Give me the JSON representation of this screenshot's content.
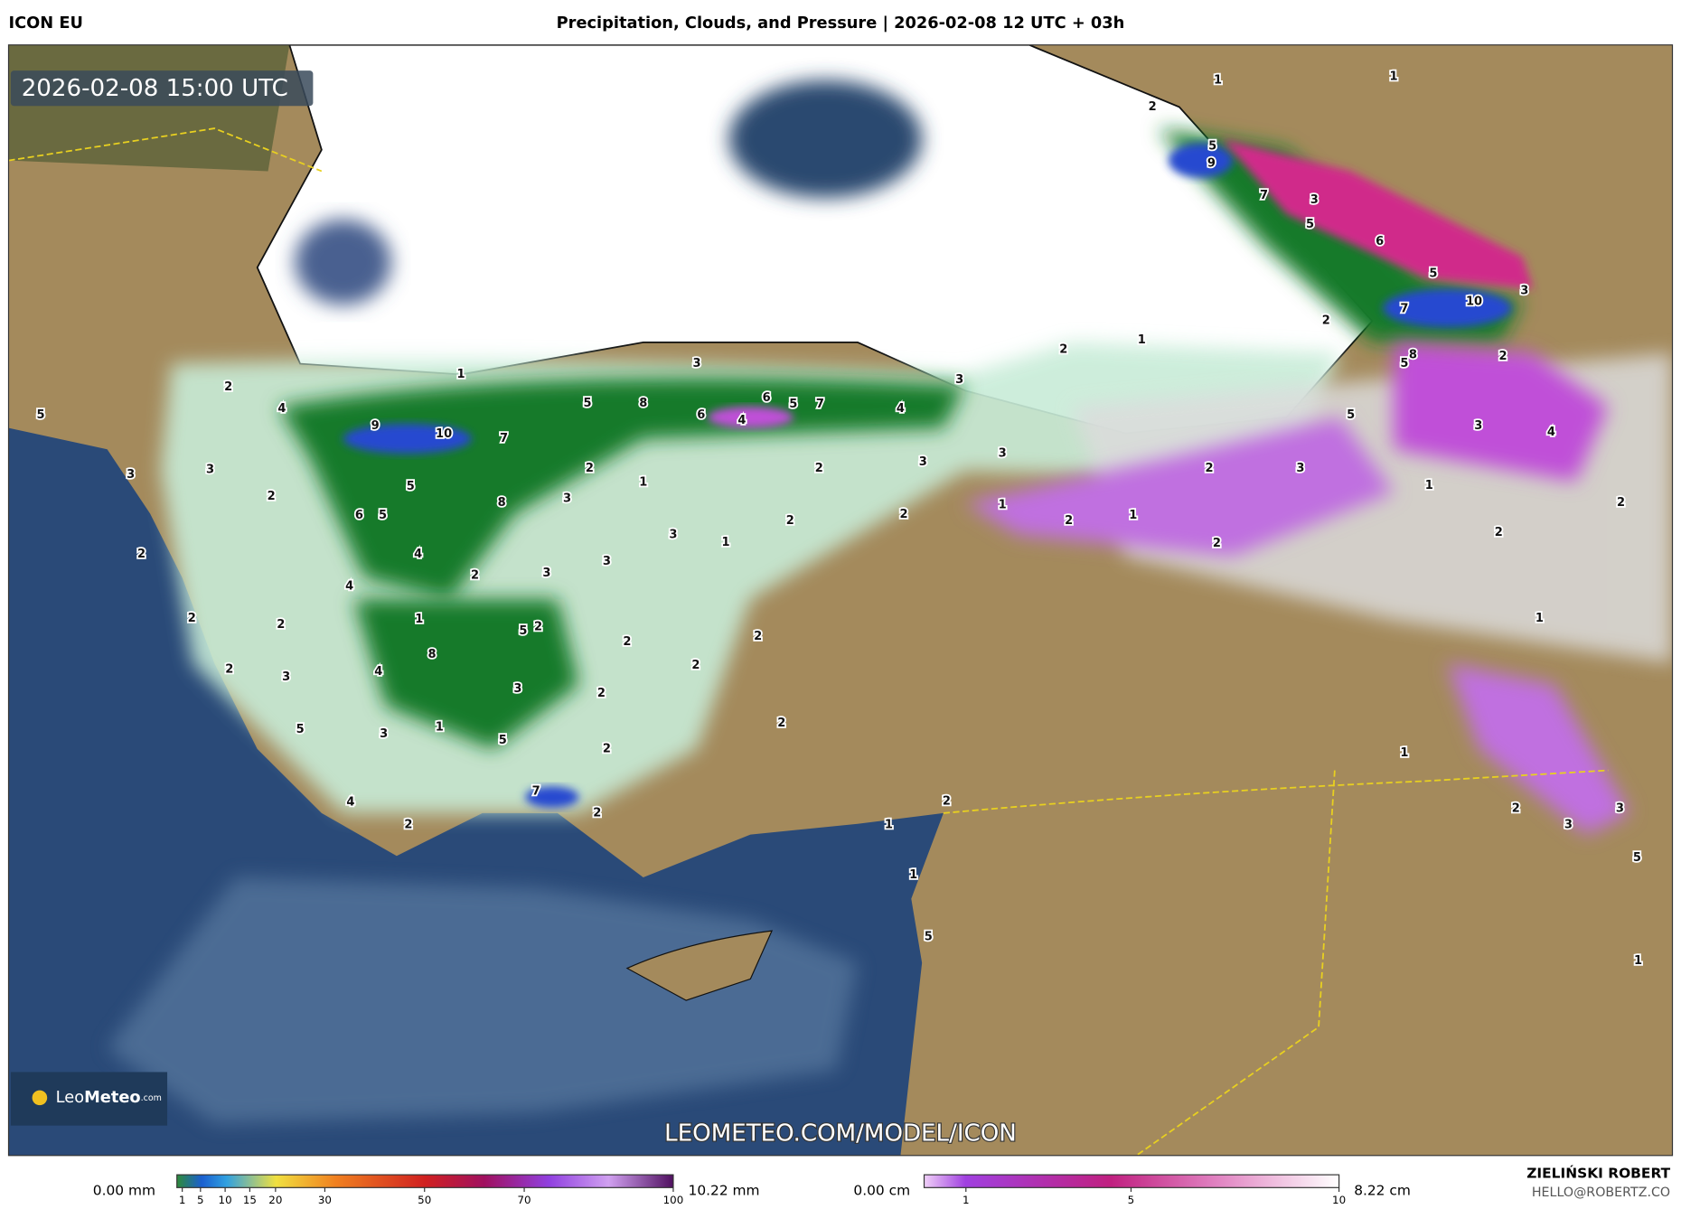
{
  "header": {
    "model": "ICON EU",
    "title": "Precipitation, Clouds, and Pressure | 2026-02-08 12 UTC + 03h"
  },
  "map": {
    "timestamp": "2026-02-08 15:00 UTC",
    "logo": {
      "leo": "Leo",
      "meteo": "Meteo",
      "com": ".com"
    },
    "watermark": "LEOMETEO.COM/MODEL/ICON",
    "labels": [
      1,
      2,
      4,
      5,
      9,
      10,
      7,
      5,
      8,
      3,
      6,
      5,
      7,
      4,
      6,
      4,
      3,
      2,
      1,
      2,
      1,
      1,
      9,
      5,
      7,
      3,
      5,
      6,
      5,
      10,
      7,
      3,
      2,
      8,
      5,
      2,
      5,
      3,
      4,
      3,
      2,
      2,
      1,
      1,
      2,
      1,
      2,
      1,
      2,
      1,
      2,
      3,
      3,
      5,
      1,
      3,
      3,
      2,
      2,
      1,
      2,
      3,
      3,
      5,
      8,
      3,
      6,
      5,
      4,
      2,
      2,
      3,
      3,
      3,
      1,
      2,
      2,
      4,
      2,
      2,
      1,
      5,
      2,
      2,
      2,
      8,
      4,
      2,
      3,
      3,
      2,
      2,
      5,
      3,
      1,
      5,
      2,
      2,
      7,
      2,
      4,
      2,
      2,
      1,
      1,
      5
    ]
  },
  "legend": {
    "precipitation": {
      "min": "0.00 mm",
      "max": "10.22 mm",
      "ticks": [
        1,
        5,
        10,
        15,
        20,
        30,
        50,
        70,
        100
      ]
    },
    "snow": {
      "min": "0.00 cm",
      "max": "8.22 cm",
      "ticks": [
        1,
        5,
        10
      ]
    }
  },
  "footer": {
    "author": "ZIELIŃSKI ROBERT",
    "email": "HELLO@ROBERTZ.CO"
  }
}
